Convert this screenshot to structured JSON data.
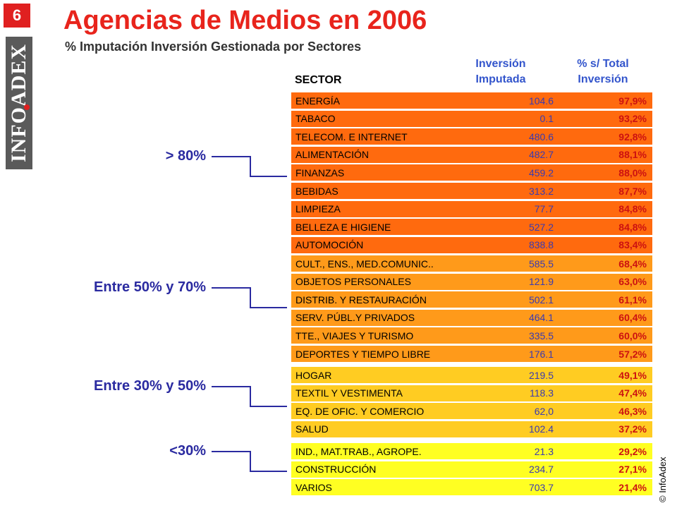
{
  "page_number": "6",
  "logo_text": "INFOADEX",
  "title": "Agencias de Medios en 2006",
  "subtitle": "% Imputación Inversión Gestionada por Sectores",
  "header": {
    "sector": "SECTOR",
    "inversion_line1": "Inversión",
    "inversion_line2": "Imputada",
    "total_line1": "% s/ Total",
    "total_line2": "Inversión"
  },
  "groups": [
    {
      "label": "> 80%",
      "color": "#ff6a0e",
      "rows": [
        {
          "sector": "ENERGÍA",
          "value": "104.6",
          "pct": "97,9%"
        },
        {
          "sector": "TABACO",
          "value": "0.1",
          "pct": "93,2%"
        },
        {
          "sector": "TELECOM. E INTERNET",
          "value": "480.6",
          "pct": "92,8%"
        },
        {
          "sector": "ALIMENTACIÓN",
          "value": "482.7",
          "pct": "88,1%"
        },
        {
          "sector": "FINANZAS",
          "value": "459.2",
          "pct": "88,0%"
        },
        {
          "sector": "BEBIDAS",
          "value": "313.2",
          "pct": "87,7%"
        },
        {
          "sector": "LIMPIEZA",
          "value": "77.7",
          "pct": "84,8%"
        },
        {
          "sector": "BELLEZA E HIGIENE",
          "value": "527.2",
          "pct": "84,8%"
        },
        {
          "sector": "AUTOMOCIÓN",
          "value": "838.8",
          "pct": "83,4%"
        }
      ]
    },
    {
      "label": "Entre 50% y 70%",
      "color": "#ff9a1a",
      "rows": [
        {
          "sector": "CULT., ENS., MED.COMUNIC..",
          "value": "585.5",
          "pct": "68,4%"
        },
        {
          "sector": "OBJETOS PERSONALES",
          "value": "121.9",
          "pct": "63,0%"
        },
        {
          "sector": "DISTRIB. Y RESTAURACIÓN",
          "value": "502.1",
          "pct": "61,1%"
        },
        {
          "sector": "SERV. PÚBL.Y PRIVADOS",
          "value": "464.1",
          "pct": "60,4%"
        },
        {
          "sector": "TTE., VIAJES Y TURISMO",
          "value": "335.5",
          "pct": "60,0%"
        },
        {
          "sector": "DEPORTES Y TIEMPO LIBRE",
          "value": "176.1",
          "pct": "57,2%"
        }
      ]
    },
    {
      "label": "Entre 30% y 50%",
      "color": "#ffcc22",
      "rows": [
        {
          "sector": "HOGAR",
          "value": "219.5",
          "pct": "49,1%"
        },
        {
          "sector": "TEXTIL Y VESTIMENTA",
          "value": "118.3",
          "pct": "47,4%"
        },
        {
          "sector": "EQ. DE OFIC. Y COMERCIO",
          "value": "62,0",
          "pct": "46,3%"
        },
        {
          "sector": "SALUD",
          "value": "102.4",
          "pct": "37,2%"
        }
      ]
    },
    {
      "label": "<30%",
      "color": "#ffff22",
      "rows": [
        {
          "sector": "IND., MAT.TRAB., AGROPE.",
          "value": "21.3",
          "pct": "29,2%"
        },
        {
          "sector": "CONSTRUCCIÓN",
          "value": "234.7",
          "pct": "27,1%"
        },
        {
          "sector": "VARIOS",
          "value": "703.7",
          "pct": "21,4%"
        }
      ]
    }
  ],
  "copyright": "© InfoAdex"
}
